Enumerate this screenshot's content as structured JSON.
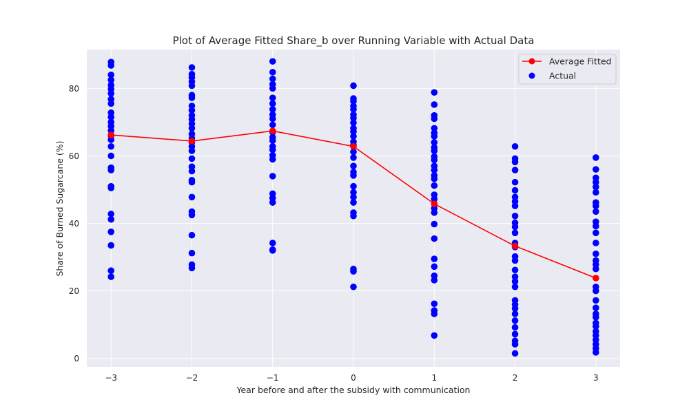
{
  "chart_data": {
    "type": "scatter",
    "title": "Plot of Average Fitted Share_b over Running Variable with Actual Data",
    "xlabel": "Year before and after the subsidy with communication",
    "ylabel": "Share of Burned Sugarcane (%)",
    "xlim": [
      -3.3,
      3.3
    ],
    "ylim": [
      -2.5,
      91.5
    ],
    "x_ticks": [
      -3,
      -2,
      -1,
      0,
      1,
      2,
      3
    ],
    "x_tick_labels": [
      "−3",
      "−2",
      "−1",
      "0",
      "1",
      "2",
      "3"
    ],
    "y_ticks": [
      0,
      20,
      40,
      60,
      80
    ],
    "y_tick_labels": [
      "0",
      "20",
      "40",
      "60",
      "80"
    ],
    "grid": true,
    "legend_position": "top-right",
    "series": [
      {
        "name": "Average Fitted",
        "kind": "line-marker",
        "color": "#ff0000",
        "x": [
          -3,
          -2,
          -1,
          0,
          1,
          2,
          3
        ],
        "y": [
          66.2,
          64.4,
          67.4,
          62.8,
          45.8,
          33.3,
          23.8
        ]
      },
      {
        "name": "Actual",
        "kind": "scatter",
        "color": "#0000ff",
        "points": [
          [
            -3,
            87.8
          ],
          [
            -3,
            86.8
          ],
          [
            -3,
            84.0
          ],
          [
            -3,
            82.5
          ],
          [
            -3,
            81.0
          ],
          [
            -3,
            79.8
          ],
          [
            -3,
            78.5
          ],
          [
            -3,
            76.8
          ],
          [
            -3,
            75.5
          ],
          [
            -3,
            72.8
          ],
          [
            -3,
            71.5
          ],
          [
            -3,
            70.0
          ],
          [
            -3,
            68.8
          ],
          [
            -3,
            67.5
          ],
          [
            -3,
            66.0
          ],
          [
            -3,
            64.8
          ],
          [
            -3,
            62.8
          ],
          [
            -3,
            60.0
          ],
          [
            -3,
            56.5
          ],
          [
            -3,
            55.8
          ],
          [
            -3,
            51.0
          ],
          [
            -3,
            50.5
          ],
          [
            -3,
            42.8
          ],
          [
            -3,
            41.2
          ],
          [
            -3,
            37.5
          ],
          [
            -3,
            33.5
          ],
          [
            -3,
            26.0
          ],
          [
            -3,
            24.2
          ],
          [
            -2,
            86.2
          ],
          [
            -2,
            84.2
          ],
          [
            -2,
            83.2
          ],
          [
            -2,
            82.0
          ],
          [
            -2,
            80.8
          ],
          [
            -2,
            78.0
          ],
          [
            -2,
            77.2
          ],
          [
            -2,
            74.8
          ],
          [
            -2,
            73.5
          ],
          [
            -2,
            72.0
          ],
          [
            -2,
            70.8
          ],
          [
            -2,
            69.5
          ],
          [
            -2,
            68.2
          ],
          [
            -2,
            66.5
          ],
          [
            -2,
            65.2
          ],
          [
            -2,
            64.0
          ],
          [
            -2,
            62.8
          ],
          [
            -2,
            61.5
          ],
          [
            -2,
            59.2
          ],
          [
            -2,
            56.8
          ],
          [
            -2,
            55.5
          ],
          [
            -2,
            52.8
          ],
          [
            -2,
            52.2
          ],
          [
            -2,
            47.8
          ],
          [
            -2,
            43.5
          ],
          [
            -2,
            42.5
          ],
          [
            -2,
            36.5
          ],
          [
            -2,
            31.2
          ],
          [
            -2,
            27.8
          ],
          [
            -2,
            26.8
          ],
          [
            -1,
            88.0
          ],
          [
            -1,
            84.8
          ],
          [
            -1,
            82.8
          ],
          [
            -1,
            81.2
          ],
          [
            -1,
            80.0
          ],
          [
            -1,
            77.2
          ],
          [
            -1,
            75.5
          ],
          [
            -1,
            73.8
          ],
          [
            -1,
            72.2
          ],
          [
            -1,
            71.0
          ],
          [
            -1,
            69.2
          ],
          [
            -1,
            67.0
          ],
          [
            -1,
            65.5
          ],
          [
            -1,
            64.5
          ],
          [
            -1,
            62.8
          ],
          [
            -1,
            61.8
          ],
          [
            -1,
            60.2
          ],
          [
            -1,
            59.0
          ],
          [
            -1,
            54.0
          ],
          [
            -1,
            48.8
          ],
          [
            -1,
            47.5
          ],
          [
            -1,
            46.2
          ],
          [
            -1,
            34.2
          ],
          [
            -1,
            32.2
          ],
          [
            -1,
            32.0
          ],
          [
            0,
            80.8
          ],
          [
            0,
            77.0
          ],
          [
            0,
            76.2
          ],
          [
            0,
            74.8
          ],
          [
            0,
            73.8
          ],
          [
            0,
            72.2
          ],
          [
            0,
            71.2
          ],
          [
            0,
            69.8
          ],
          [
            0,
            68.2
          ],
          [
            0,
            67.2
          ],
          [
            0,
            65.8
          ],
          [
            0,
            64.2
          ],
          [
            0,
            63.2
          ],
          [
            0,
            61.2
          ],
          [
            0,
            59.5
          ],
          [
            0,
            57.0
          ],
          [
            0,
            55.2
          ],
          [
            0,
            54.2
          ],
          [
            0,
            51.0
          ],
          [
            0,
            49.2
          ],
          [
            0,
            47.8
          ],
          [
            0,
            46.2
          ],
          [
            0,
            43.2
          ],
          [
            0,
            42.2
          ],
          [
            0,
            26.5
          ],
          [
            0,
            25.8
          ],
          [
            0,
            21.2
          ],
          [
            1,
            78.8
          ],
          [
            1,
            75.2
          ],
          [
            1,
            72.0
          ],
          [
            1,
            71.0
          ],
          [
            1,
            68.2
          ],
          [
            1,
            66.8
          ],
          [
            1,
            65.8
          ],
          [
            1,
            64.0
          ],
          [
            1,
            62.5
          ],
          [
            1,
            61.5
          ],
          [
            1,
            59.8
          ],
          [
            1,
            58.8
          ],
          [
            1,
            57.0
          ],
          [
            1,
            55.8
          ],
          [
            1,
            54.2
          ],
          [
            1,
            53.2
          ],
          [
            1,
            51.2
          ],
          [
            1,
            48.5
          ],
          [
            1,
            47.2
          ],
          [
            1,
            44.5
          ],
          [
            1,
            43.2
          ],
          [
            1,
            39.8
          ],
          [
            1,
            35.5
          ],
          [
            1,
            29.5
          ],
          [
            1,
            27.2
          ],
          [
            1,
            24.5
          ],
          [
            1,
            23.2
          ],
          [
            1,
            16.2
          ],
          [
            1,
            14.2
          ],
          [
            1,
            13.2
          ],
          [
            1,
            6.8
          ],
          [
            2,
            62.8
          ],
          [
            2,
            59.2
          ],
          [
            2,
            58.2
          ],
          [
            2,
            55.8
          ],
          [
            2,
            52.2
          ],
          [
            2,
            49.8
          ],
          [
            2,
            47.8
          ],
          [
            2,
            46.5
          ],
          [
            2,
            45.2
          ],
          [
            2,
            42.2
          ],
          [
            2,
            40.2
          ],
          [
            2,
            39.0
          ],
          [
            2,
            37.2
          ],
          [
            2,
            34.2
          ],
          [
            2,
            33.0
          ],
          [
            2,
            30.2
          ],
          [
            2,
            29.0
          ],
          [
            2,
            26.2
          ],
          [
            2,
            24.2
          ],
          [
            2,
            22.8
          ],
          [
            2,
            21.2
          ],
          [
            2,
            17.2
          ],
          [
            2,
            16.0
          ],
          [
            2,
            14.8
          ],
          [
            2,
            13.2
          ],
          [
            2,
            11.2
          ],
          [
            2,
            9.2
          ],
          [
            2,
            7.2
          ],
          [
            2,
            5.2
          ],
          [
            2,
            4.2
          ],
          [
            2,
            1.5
          ],
          [
            3,
            59.5
          ],
          [
            3,
            56.0
          ],
          [
            3,
            53.5
          ],
          [
            3,
            52.2
          ],
          [
            3,
            50.8
          ],
          [
            3,
            49.2
          ],
          [
            3,
            46.2
          ],
          [
            3,
            45.2
          ],
          [
            3,
            43.5
          ],
          [
            3,
            40.5
          ],
          [
            3,
            39.2
          ],
          [
            3,
            37.2
          ],
          [
            3,
            34.2
          ],
          [
            3,
            31.0
          ],
          [
            3,
            29.0
          ],
          [
            3,
            27.8
          ],
          [
            3,
            26.5
          ],
          [
            3,
            21.2
          ],
          [
            3,
            20.0
          ],
          [
            3,
            17.2
          ],
          [
            3,
            15.0
          ],
          [
            3,
            13.2
          ],
          [
            3,
            12.2
          ],
          [
            3,
            10.5
          ],
          [
            3,
            9.5
          ],
          [
            3,
            8.0
          ],
          [
            3,
            6.8
          ],
          [
            3,
            5.5
          ],
          [
            3,
            4.2
          ],
          [
            3,
            3.0
          ],
          [
            3,
            1.8
          ]
        ]
      }
    ]
  }
}
